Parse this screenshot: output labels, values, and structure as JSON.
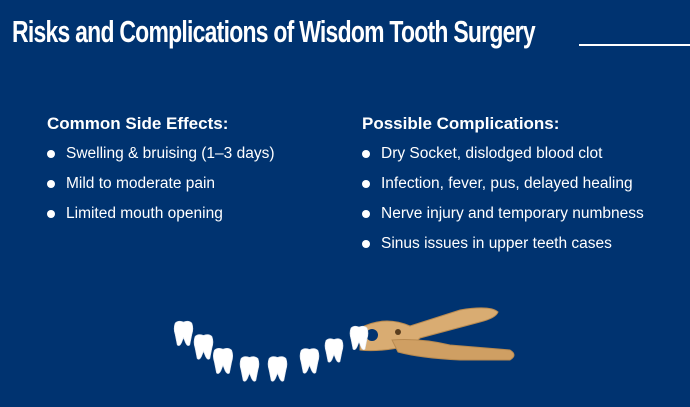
{
  "title": "Risks and Complications of Wisdom Tooth Surgery",
  "left": {
    "heading": "Common Side Effects:",
    "items": [
      "Swelling & bruising (1–3 days)",
      "Mild to moderate pain",
      "Limited mouth opening"
    ]
  },
  "right": {
    "heading": "Possible Complications:",
    "items": [
      "Dry Socket, dislodged blood clot",
      "Infection, fever, pus, delayed healing",
      "Nerve injury and temporary numbness",
      "Sinus issues in upper teeth cases"
    ]
  },
  "colors": {
    "background": "#003370",
    "text": "#ffffff",
    "pliers": "#d9ac72"
  },
  "illustration": "teeth-and-wooden-pliers"
}
